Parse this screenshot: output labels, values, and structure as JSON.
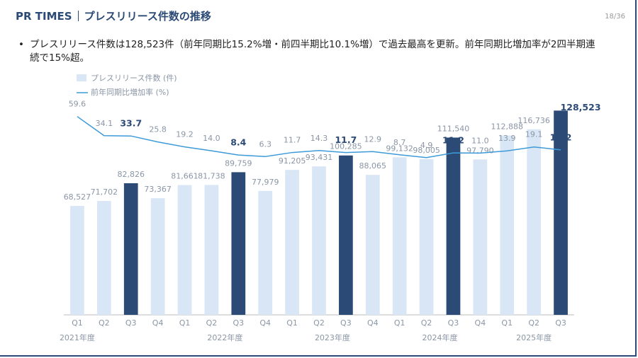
{
  "header": {
    "brand": "PR TIMES",
    "title": "プレスリリース件数の推移",
    "page": "18/36"
  },
  "bullet": "プレスリリース件数は128,523件（前年同期比15.2%増・前四半期比10.1%増）で過去最高を更新。前年同期比増加率が2四半期連続で15%超。",
  "chart_data": {
    "type": "bar-line",
    "categories": [
      "Q1",
      "Q2",
      "Q3",
      "Q4",
      "Q1",
      "Q2",
      "Q3",
      "Q4",
      "Q1",
      "Q2",
      "Q3",
      "Q4",
      "Q1",
      "Q2",
      "Q3",
      "Q4",
      "Q1",
      "Q2",
      "Q3"
    ],
    "year_groups": [
      {
        "label": "2021年度",
        "size": 4
      },
      {
        "label": "2022年度",
        "size": 4
      },
      {
        "label": "2023年度",
        "size": 4
      },
      {
        "label": "2024年度",
        "size": 4
      },
      {
        "label": "2025年度",
        "size": 3
      }
    ],
    "series": [
      {
        "name": "プレスリリース件数 (件)",
        "type": "bar",
        "color": "#d9e6f5",
        "colors": [
          "#d9e6f5",
          "#d9e6f5",
          "#2b4a75",
          "#d9e6f5",
          "#d9e6f5",
          "#d9e6f5",
          "#2b4a75",
          "#d9e6f5",
          "#d9e6f5",
          "#d9e6f5",
          "#2b4a75",
          "#d9e6f5",
          "#d9e6f5",
          "#d9e6f5",
          "#2b4a75",
          "#d9e6f5",
          "#d9e6f5",
          "#d9e6f5",
          "#2b4a75"
        ],
        "values": [
          68527,
          71702,
          82826,
          73367,
          81661,
          81738,
          89759,
          77979,
          91205,
          93431,
          100285,
          88065,
          99132,
          98005,
          111540,
          97790,
          112888,
          116736,
          128523
        ],
        "value_labels": [
          "68,527",
          "71,702",
          "82,826",
          "73,367",
          "81,661",
          "81,738",
          "89,759",
          "77,979",
          "91,205",
          "93,431",
          "100,285",
          "88,065",
          "99,132",
          "98,005",
          "111,540",
          "97,790",
          "112,888",
          "116,736",
          "128,523"
        ]
      },
      {
        "name": "前年同期比増加率 (%)",
        "type": "line",
        "axis": "y2",
        "color": "#3d9ad9",
        "values": [
          59.6,
          34.1,
          33.7,
          25.8,
          19.2,
          14.0,
          8.4,
          6.3,
          11.7,
          14.3,
          11.7,
          12.9,
          8.7,
          4.9,
          11.2,
          11.0,
          13.9,
          19.1,
          15.2
        ],
        "value_labels": [
          "59.6",
          "34.1",
          "33.7",
          "25.8",
          "19.2",
          "14.0",
          "8.4",
          "6.3",
          "11.7",
          "14.3",
          "11.7",
          "12.9",
          "8.7",
          "4.9",
          "11.2",
          "11.0",
          "13.9",
          "19.1",
          "15.2"
        ]
      }
    ],
    "ylim": [
      0,
      130000
    ],
    "y2lim": [
      0,
      64
    ]
  }
}
